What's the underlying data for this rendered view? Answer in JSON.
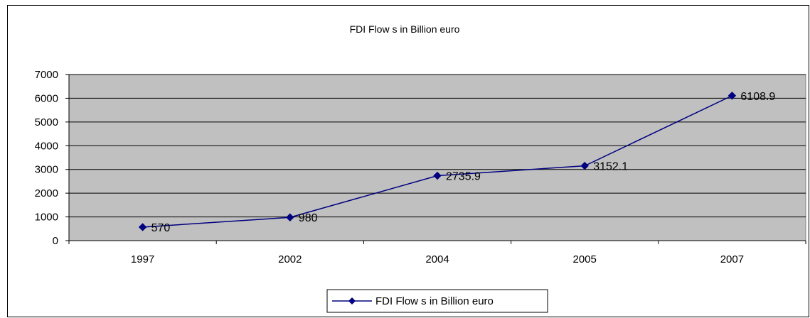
{
  "chart_data": {
    "type": "line",
    "title": "FDI Flow s in Billion euro",
    "xlabel": "",
    "ylabel": "",
    "categories": [
      "1997",
      "2002",
      "2004",
      "2005",
      "2007"
    ],
    "series": [
      {
        "name": "FDI Flow s in Billion euro",
        "values": [
          570,
          980,
          2735.9,
          3152.1,
          6108.9
        ],
        "color": "#000080"
      }
    ],
    "data_labels": [
      "570",
      "980",
      "2735.9",
      "3152.1",
      "6108.9"
    ],
    "ylim": [
      0,
      7000
    ],
    "yticks": [
      "0",
      "1000",
      "2000",
      "3000",
      "4000",
      "5000",
      "6000",
      "7000"
    ],
    "grid": true,
    "plot_background": "#c0c0c0",
    "legend_position": "bottom"
  }
}
